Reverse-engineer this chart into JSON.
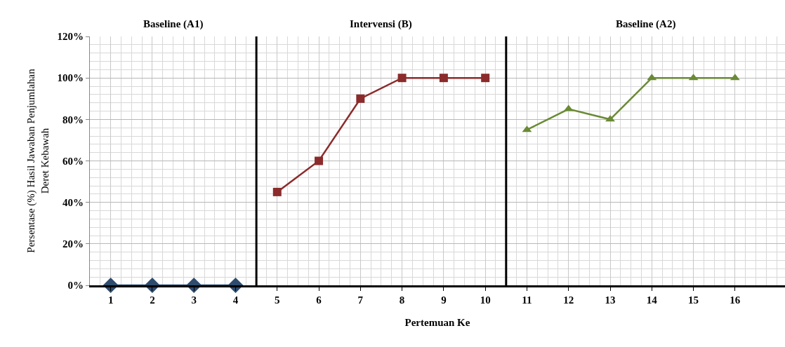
{
  "chart_data": {
    "type": "line",
    "xlabel": "Pertemuan Ke",
    "ylabel": "Persentase (%) Hasil Jawaban Penjumlahan\nDeret Kebawah",
    "xlim": [
      0.5,
      17.2
    ],
    "xticks": [
      1,
      2,
      3,
      4,
      5,
      6,
      7,
      8,
      9,
      10,
      11,
      12,
      13,
      14,
      15,
      16
    ],
    "ylim": [
      0,
      120
    ],
    "yticks": [
      {
        "value": 0,
        "label": "0%"
      },
      {
        "value": 20,
        "label": "20%"
      },
      {
        "value": 40,
        "label": "40%"
      },
      {
        "value": 60,
        "label": "60%"
      },
      {
        "value": 80,
        "label": "80%"
      },
      {
        "value": 100,
        "label": "100%"
      },
      {
        "value": 120,
        "label": "120%"
      }
    ],
    "grid": true,
    "line_style": "solid",
    "series": [
      {
        "color": "#2f4b6e",
        "marker": "diamond",
        "x": [
          1,
          2,
          3,
          4
        ],
        "values": [
          0,
          0,
          0,
          0
        ]
      },
      {
        "color": "#8b2b2b",
        "marker": "square",
        "x": [
          5,
          6,
          7,
          8,
          9,
          10
        ],
        "values": [
          45,
          60,
          90,
          100,
          100,
          100
        ]
      },
      {
        "color": "#6a8a35",
        "marker": "triangle",
        "x": [
          11,
          12,
          13,
          14,
          15,
          16
        ],
        "values": [
          75,
          85,
          80,
          100,
          100,
          100
        ]
      }
    ],
    "ref_lines": [
      {
        "axis": "x",
        "value": 4.5,
        "color": "#000000"
      },
      {
        "axis": "x",
        "value": 10.5,
        "color": "#000000"
      }
    ],
    "annotations": [
      "Baseline (A1)",
      "Intervensi (B)",
      "Baseline (A2)"
    ]
  }
}
